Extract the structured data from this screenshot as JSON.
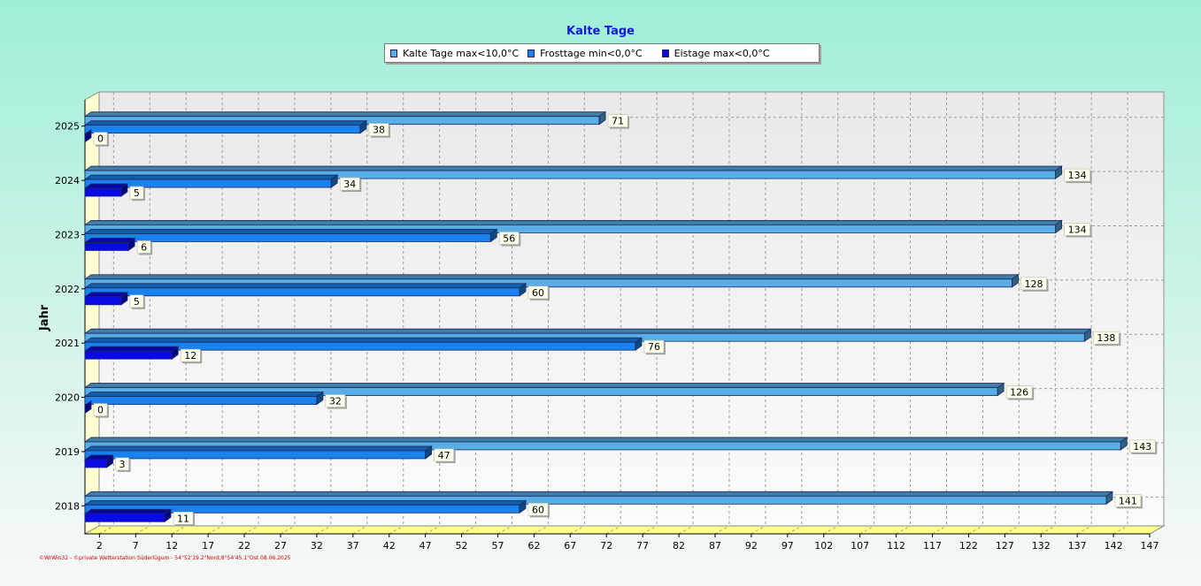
{
  "chart_data": {
    "type": "bar",
    "orientation": "horizontal",
    "title": "Kalte Tage",
    "ylabel": "Jahr",
    "xlabel": "",
    "categories": [
      "2025",
      "2024",
      "2023",
      "2022",
      "2021",
      "2020",
      "2019",
      "2018"
    ],
    "series": [
      {
        "name": "Kalte Tage max<10,0°C",
        "color": "#5aaee6",
        "values": [
          71,
          134,
          134,
          128,
          138,
          126,
          143,
          141
        ]
      },
      {
        "name": "Frosttage min<0,0°C",
        "color": "#1a82ee",
        "values": [
          38,
          34,
          56,
          60,
          76,
          32,
          47,
          60
        ]
      },
      {
        "name": "Eistage max<0,0°C",
        "color": "#0a0ae6",
        "values": [
          0,
          5,
          6,
          5,
          12,
          0,
          3,
          11
        ]
      }
    ],
    "xticks": [
      "2",
      "7",
      "12",
      "17",
      "22",
      "27",
      "32",
      "37",
      "42",
      "47",
      "52",
      "57",
      "62",
      "67",
      "72",
      "77",
      "82",
      "87",
      "92",
      "97",
      "102",
      "107",
      "112",
      "117",
      "122",
      "127",
      "132",
      "137",
      "142",
      "147"
    ],
    "xlim": [
      0,
      147
    ],
    "grid": true,
    "legend_position": "top-center"
  },
  "footer": "©WrWin32 - ©private Wetterstation Süderlügum - 54°52'19.2\"Nord;8°54'45.1\"Ost 08.06.2025"
}
